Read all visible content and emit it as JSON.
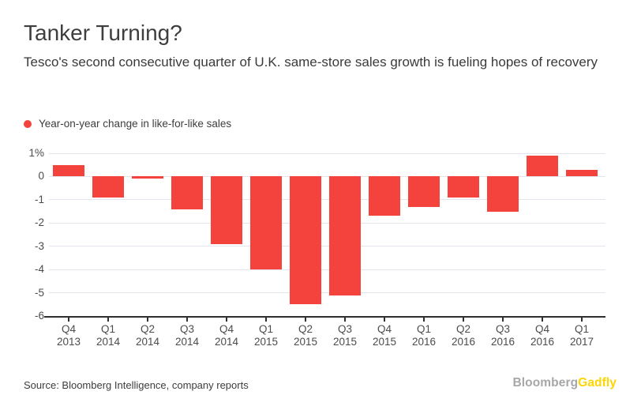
{
  "header": {
    "title": "Tanker Turning?",
    "subtitle": "Tesco's second consecutive quarter of U.K. same-store sales growth is fueling hopes of recovery"
  },
  "legend": {
    "label": "Year-on-year change in like-for-like sales",
    "marker_color": "#f4433c"
  },
  "chart_data": {
    "type": "bar",
    "title": "Tanker Turning?",
    "subtitle": "Tesco's second consecutive quarter of U.K. same-store sales growth is fueling hopes of recovery",
    "series_name": "Year-on-year change in like-for-like sales",
    "categories": [
      "Q4 2013",
      "Q1 2014",
      "Q2 2014",
      "Q3 2014",
      "Q4 2014",
      "Q1 2015",
      "Q2 2015",
      "Q3 2015",
      "Q4 2015",
      "Q1 2016",
      "Q2 2016",
      "Q3 2016",
      "Q4 2016",
      "Q1 2017"
    ],
    "values": [
      0.5,
      -0.9,
      -0.1,
      -1.4,
      -2.9,
      -4.0,
      -5.5,
      -5.1,
      -1.7,
      -1.3,
      -0.9,
      -1.5,
      0.9,
      0.3
    ],
    "xlabel": "",
    "ylabel": "",
    "ylim": [
      -6,
      1
    ],
    "y_ticks": [
      {
        "value": 1,
        "label": "1%"
      },
      {
        "value": 0,
        "label": "0"
      },
      {
        "value": -1,
        "label": "-1"
      },
      {
        "value": -2,
        "label": "-2"
      },
      {
        "value": -3,
        "label": "-3"
      },
      {
        "value": -4,
        "label": "-4"
      },
      {
        "value": -5,
        "label": "-5"
      },
      {
        "value": -6,
        "label": "-6"
      }
    ],
    "grid": true,
    "legend_position": "top-left",
    "bar_color": "#f4433c",
    "grid_color": "#e4e4ed",
    "axis_color": "#2f2f2f",
    "tick_label_color": "#4c4c4c"
  },
  "footer": {
    "source": "Source: Bloomberg Intelligence, company reports",
    "logo": {
      "bloomberg": "Bloomberg",
      "gadfly": "Gadfly",
      "bloomberg_color": "#a7a7a7",
      "gadfly_color": "#ffd500"
    }
  }
}
